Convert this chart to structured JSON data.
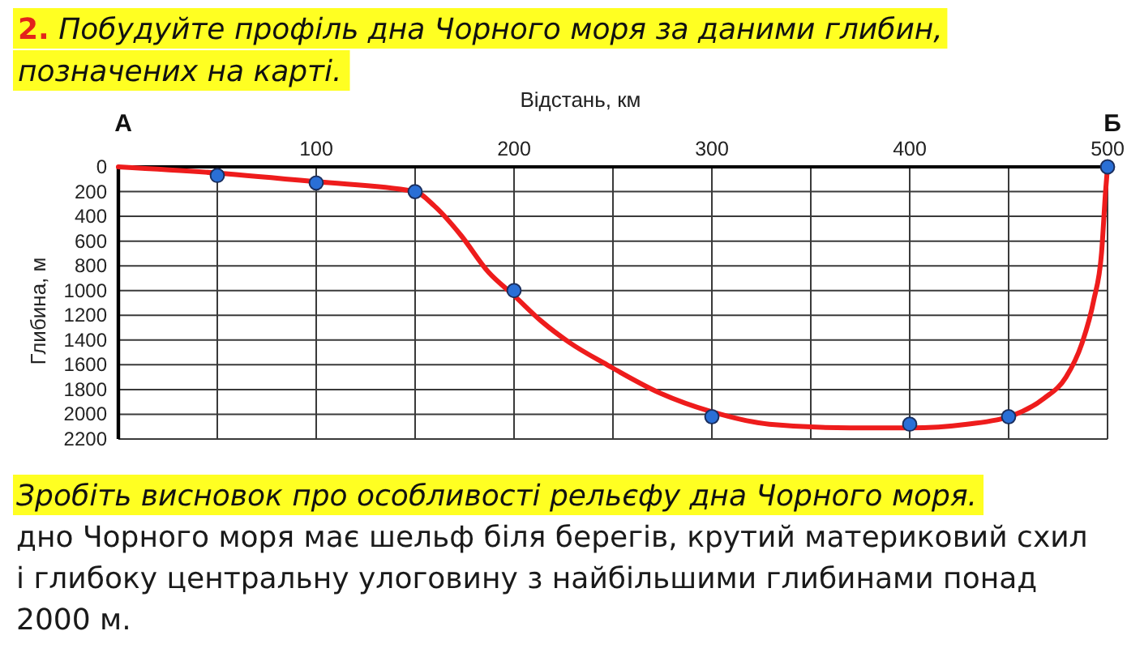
{
  "chart_data": {
    "type": "line",
    "title": "2. Побудуйте профіль дна Чорного моря за даними глибин, позначених на карті.",
    "subtitle": "Зробіть висновок про особливості рельєфу дна Чорного моря.",
    "annotations": [
      {
        "text": "А",
        "x": 0,
        "y": 0
      },
      {
        "text": "Б",
        "x": 500,
        "y": 0
      },
      "дно Чорного моря має шельф біля берегів, крутий материковий схил і глибоку центральну улоговину з найбільшими глибинами понад 2000 м."
    ],
    "xlabel": "Відстань, км",
    "ylabel": "Глибина, м",
    "xlim": [
      0,
      500
    ],
    "xticks": [
      {
        "value": 50,
        "label": null
      },
      100,
      {
        "value": 150,
        "label": null
      },
      200,
      {
        "value": 250,
        "label": null
      },
      300,
      {
        "value": 350,
        "label": null
      },
      400,
      {
        "value": 450,
        "label": null
      },
      500
    ],
    "ylim": [
      2200,
      0
    ],
    "yticks": [
      0,
      200,
      400,
      600,
      800,
      1000,
      1200,
      1400,
      1600,
      1800,
      2000,
      2200
    ],
    "grid": true,
    "series": [
      {
        "type": "line",
        "color": "#ee1c1c",
        "marker": "none",
        "x": [
          0,
          50,
          100,
          150,
          160,
          173,
          187,
          200,
          214,
          228,
          247,
          274,
          300,
          329,
          370,
          400,
          429,
          452,
          468,
          479,
          487,
          493,
          497,
          499,
          500
        ],
        "values": [
          0,
          50,
          120,
          200,
          320,
          550,
          850,
          1040,
          1250,
          1420,
          1600,
          1830,
          1980,
          2080,
          2110,
          2110,
          2080,
          2010,
          1870,
          1700,
          1430,
          1080,
          690,
          200,
          0
        ]
      },
      {
        "type": "scatter",
        "color": "#2a6fd6",
        "marker": "circle",
        "x": [
          50,
          100,
          150,
          200,
          300,
          400,
          450,
          500
        ],
        "values": [
          70,
          130,
          200,
          1000,
          2020,
          2080,
          2020,
          0
        ]
      }
    ]
  }
}
